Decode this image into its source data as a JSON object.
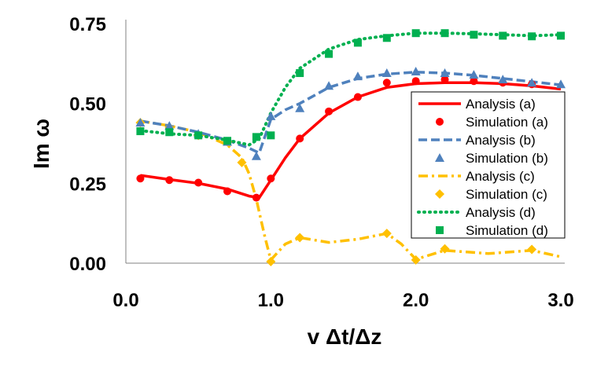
{
  "chart_data": {
    "type": "line",
    "title": "",
    "xlabel": "v Δt/Δz",
    "ylabel": "Im ω",
    "xlim": [
      0.0,
      3.0
    ],
    "ylim": [
      0.0,
      0.75
    ],
    "x_ticks": [
      0.0,
      1.0,
      2.0,
      3.0
    ],
    "x_tick_labels": [
      "0.0",
      "1.0",
      "2.0",
      "3.0"
    ],
    "y_ticks": [
      0.0,
      0.25,
      0.5,
      0.75
    ],
    "y_tick_labels": [
      "0.00",
      "0.25",
      "0.50",
      "0.75"
    ],
    "grid": false,
    "legend_position": "right",
    "colors": {
      "a": "#FF0000",
      "b": "#4F81BD",
      "c": "#FFC000",
      "d": "#00B050"
    },
    "series": [
      {
        "key": "analysis_a",
        "name": "Analysis (a)",
        "kind": "line",
        "style": "solid",
        "color": "#FF0000",
        "x": [
          0.1,
          0.3,
          0.5,
          0.7,
          0.85,
          0.92,
          1.0,
          1.1,
          1.2,
          1.4,
          1.6,
          1.8,
          2.0,
          2.2,
          2.4,
          2.6,
          2.8,
          3.0
        ],
        "y": [
          0.275,
          0.262,
          0.25,
          0.232,
          0.21,
          0.205,
          0.26,
          0.33,
          0.39,
          0.47,
          0.52,
          0.55,
          0.562,
          0.565,
          0.565,
          0.562,
          0.555,
          0.545
        ]
      },
      {
        "key": "sim_a",
        "name": "Simulation (a)",
        "kind": "marker",
        "marker": "circle",
        "color": "#FF0000",
        "x": [
          0.1,
          0.3,
          0.5,
          0.7,
          0.9,
          1.0,
          1.2,
          1.4,
          1.6,
          1.8,
          2.0,
          2.2,
          2.4,
          2.6,
          2.8
        ],
        "y": [
          0.265,
          0.26,
          0.252,
          0.225,
          0.205,
          0.265,
          0.39,
          0.475,
          0.52,
          0.565,
          0.57,
          0.575,
          0.57,
          0.565,
          0.56
        ]
      },
      {
        "key": "analysis_b",
        "name": "Analysis (b)",
        "kind": "line",
        "style": "dashed",
        "color": "#4F81BD",
        "x": [
          0.1,
          0.3,
          0.5,
          0.7,
          0.85,
          0.92,
          1.0,
          1.1,
          1.2,
          1.4,
          1.6,
          1.8,
          2.0,
          2.2,
          2.4,
          2.6,
          2.8,
          3.0
        ],
        "y": [
          0.445,
          0.43,
          0.41,
          0.385,
          0.36,
          0.345,
          0.45,
          0.48,
          0.5,
          0.55,
          0.578,
          0.592,
          0.598,
          0.595,
          0.588,
          0.578,
          0.568,
          0.558
        ]
      },
      {
        "key": "sim_b",
        "name": "Simulation (b)",
        "kind": "marker",
        "marker": "triangle",
        "color": "#4F81BD",
        "x": [
          0.1,
          0.3,
          0.5,
          0.7,
          0.9,
          1.0,
          1.2,
          1.4,
          1.6,
          1.8,
          2.0,
          2.2,
          2.4,
          2.6,
          2.8,
          3.0
        ],
        "y": [
          0.44,
          0.43,
          0.405,
          0.38,
          0.335,
          0.46,
          0.485,
          0.555,
          0.585,
          0.595,
          0.6,
          0.595,
          0.59,
          0.575,
          0.565,
          0.56
        ]
      },
      {
        "key": "analysis_c",
        "name": "Analysis (c)",
        "kind": "line",
        "style": "dashdot",
        "color": "#FFC000",
        "x": [
          0.1,
          0.3,
          0.5,
          0.6,
          0.7,
          0.8,
          0.85,
          0.9,
          0.93,
          0.96,
          1.0,
          1.1,
          1.2,
          1.4,
          1.6,
          1.8,
          1.9,
          2.0,
          2.2,
          2.5,
          2.8,
          3.0
        ],
        "y": [
          0.445,
          0.43,
          0.41,
          0.39,
          0.37,
          0.33,
          0.28,
          0.2,
          0.14,
          0.08,
          0.01,
          0.06,
          0.08,
          0.065,
          0.075,
          0.093,
          0.06,
          0.012,
          0.04,
          0.03,
          0.04,
          0.02
        ]
      },
      {
        "key": "sim_c",
        "name": "Simulation (c)",
        "kind": "marker",
        "marker": "diamond",
        "color": "#FFC000",
        "x": [
          0.1,
          0.3,
          0.5,
          0.7,
          0.8,
          1.0,
          1.2,
          1.8,
          2.0,
          2.2,
          2.8
        ],
        "y": [
          0.44,
          0.425,
          0.4,
          0.38,
          0.315,
          0.005,
          0.08,
          0.093,
          0.01,
          0.045,
          0.043
        ]
      },
      {
        "key": "analysis_d",
        "name": "Analysis (d)",
        "kind": "line",
        "style": "dotted",
        "color": "#00B050",
        "x": [
          0.1,
          0.3,
          0.5,
          0.7,
          0.85,
          0.92,
          1.0,
          1.1,
          1.2,
          1.4,
          1.6,
          1.8,
          2.0,
          2.2,
          2.4,
          2.6,
          2.8,
          3.0
        ],
        "y": [
          0.415,
          0.405,
          0.4,
          0.385,
          0.37,
          0.39,
          0.47,
          0.55,
          0.61,
          0.67,
          0.7,
          0.712,
          0.72,
          0.72,
          0.718,
          0.715,
          0.712,
          0.715
        ]
      },
      {
        "key": "sim_d",
        "name": "Simulation (d)",
        "kind": "marker",
        "marker": "square",
        "color": "#00B050",
        "x": [
          0.1,
          0.3,
          0.5,
          0.7,
          0.9,
          1.0,
          1.2,
          1.4,
          1.6,
          1.8,
          2.0,
          2.2,
          2.4,
          2.6,
          2.8,
          3.0
        ],
        "y": [
          0.413,
          0.41,
          0.4,
          0.383,
          0.395,
          0.4,
          0.595,
          0.655,
          0.69,
          0.705,
          0.72,
          0.72,
          0.715,
          0.712,
          0.71,
          0.712
        ]
      }
    ]
  }
}
